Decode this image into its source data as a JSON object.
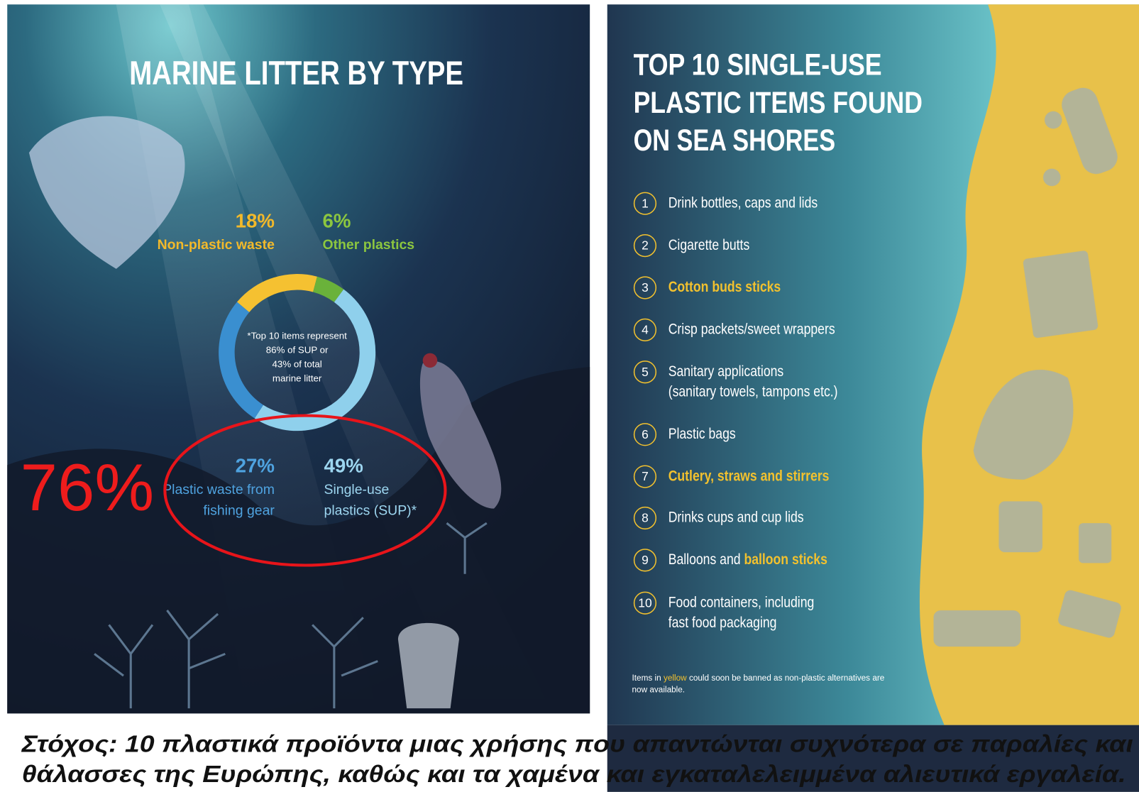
{
  "left": {
    "title": "MARINE LITTER BY TYPE",
    "segments": [
      {
        "name": "Non-plastic waste",
        "value": 18,
        "value_label": "18%",
        "color": "#f5c131"
      },
      {
        "name": "Other plastics",
        "value": 6,
        "value_label": "6%",
        "color": "#6ab23a"
      },
      {
        "name": "Single-use plastics (SUP)*",
        "value": 49,
        "value_label": "49%",
        "color": "#8fd0ec"
      },
      {
        "name": "Plastic waste from fishing gear",
        "value": 27,
        "value_label": "27%",
        "color": "#3a8fd0"
      }
    ],
    "center_note": [
      "*Top 10 items represent",
      "86% of SUP or",
      "43% of total",
      "marine litter"
    ],
    "annotation": "76%"
  },
  "right": {
    "title": [
      "TOP 10 SINGLE-USE",
      "PLASTIC ITEMS FOUND",
      "ON SEA SHORES"
    ],
    "items": [
      {
        "number": "1",
        "lines": [
          "Drink bottles, caps and lids"
        ],
        "yellow": false
      },
      {
        "number": "2",
        "lines": [
          "Cigarette butts"
        ],
        "yellow": false
      },
      {
        "number": "3",
        "lines": [
          "Cotton buds sticks"
        ],
        "yellow": true
      },
      {
        "number": "4",
        "lines": [
          "Crisp packets/sweet wrappers"
        ],
        "yellow": false
      },
      {
        "number": "5",
        "lines": [
          "Sanitary applications",
          "(sanitary towels, tampons etc.)"
        ],
        "yellow": false
      },
      {
        "number": "6",
        "lines": [
          "Plastic bags"
        ],
        "yellow": false
      },
      {
        "number": "7",
        "lines": [
          "Cutlery, straws and stirrers"
        ],
        "yellow": true
      },
      {
        "number": "8",
        "lines": [
          "Drinks cups and cup lids"
        ],
        "yellow": false
      },
      {
        "number": "9",
        "parts": [
          "Balloons and ",
          "balloon sticks"
        ],
        "yellow_parts": [
          false,
          true
        ]
      },
      {
        "number": "10",
        "lines": [
          "Food containers, including",
          "fast food packaging"
        ],
        "yellow": false
      }
    ],
    "footnote": [
      "Items in ",
      "yellow",
      " could soon be banned as non-plastic alternatives are",
      "now available."
    ]
  },
  "caption": [
    "Στόχος: 10 πλαστικά προϊόντα μιας χρήσης που απαντώνται συχνότερα σε παραλίες και",
    "θάλασσες της Ευρώπης, καθώς και τα χαμένα και εγκαταλελειμμένα αλιευτικά εργαλεία."
  ]
}
